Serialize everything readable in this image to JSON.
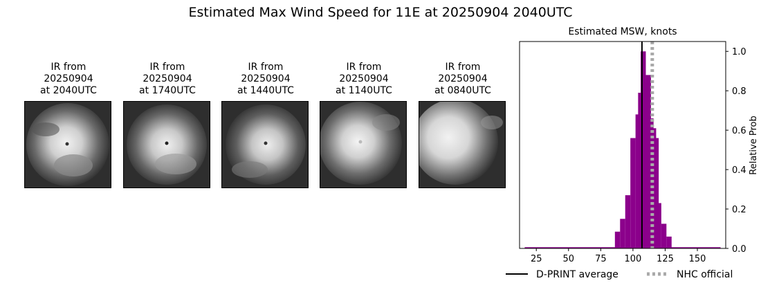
{
  "figure": {
    "title": "Estimated Max Wind Speed for 11E at 20250904 2040UTC"
  },
  "ir_panels": [
    {
      "caption": "IR from\n20250904\nat 2040UTC"
    },
    {
      "caption": "IR from\n20250904\nat 1740UTC"
    },
    {
      "caption": "IR from\n20250904\nat 1440UTC"
    },
    {
      "caption": "IR from\n20250904\nat 1140UTC"
    },
    {
      "caption": "IR from\n20250904\nat 0840UTC"
    }
  ],
  "chart_data": {
    "type": "bar",
    "title": "Estimated MSW, knots",
    "xlabel": "",
    "ylabel": "Relative Prob",
    "xlim": [
      12,
      172
    ],
    "ylim": [
      0,
      1.05
    ],
    "xticks": [
      25,
      50,
      75,
      100,
      125,
      150
    ],
    "yticks": [
      "0.0",
      "0.2",
      "0.4",
      "0.6",
      "0.8",
      "1.0"
    ],
    "bin_width": 4,
    "bins": [
      {
        "x": 86,
        "y": 0.085
      },
      {
        "x": 90,
        "y": 0.15
      },
      {
        "x": 94,
        "y": 0.27
      },
      {
        "x": 98,
        "y": 0.56
      },
      {
        "x": 102,
        "y": 0.68
      },
      {
        "x": 104,
        "y": 0.79
      },
      {
        "x": 106,
        "y": 1.0
      },
      {
        "x": 108,
        "y": 0.84
      },
      {
        "x": 110,
        "y": 0.88
      },
      {
        "x": 112,
        "y": 0.66
      },
      {
        "x": 114,
        "y": 0.61
      },
      {
        "x": 116,
        "y": 0.56
      },
      {
        "x": 118,
        "y": 0.23
      },
      {
        "x": 122,
        "y": 0.125
      },
      {
        "x": 126,
        "y": 0.06
      }
    ],
    "baseline_range": [
      16,
      168
    ],
    "bar_color": "#8b008b",
    "lines": [
      {
        "name": "D-PRINT average",
        "x": 107,
        "color": "#000000",
        "style": "solid"
      },
      {
        "name": "NHC official",
        "x": 115,
        "color": "#a9a9a9",
        "style": "dotted"
      }
    ],
    "grid": false,
    "legend_position": "bottom"
  }
}
